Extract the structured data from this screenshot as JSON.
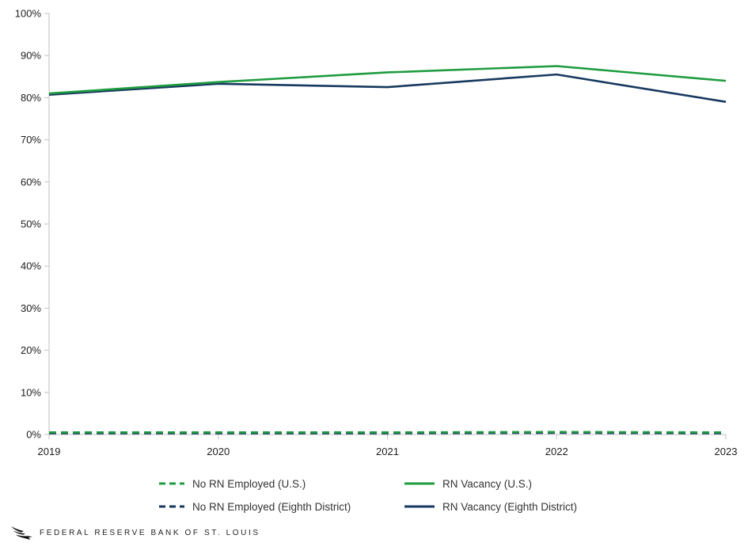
{
  "chart_data": {
    "type": "line",
    "x": [
      "2019",
      "2020",
      "2021",
      "2022",
      "2023"
    ],
    "ylim": [
      0,
      100
    ],
    "y_ticks": [
      0,
      10,
      20,
      30,
      40,
      50,
      60,
      70,
      80,
      90,
      100
    ],
    "y_tick_suffix": "%",
    "grid": false,
    "legend_position": "bottom",
    "colors": {
      "green": "#1e9c3f",
      "navy": "#17395f",
      "axis": "#c2c2c2",
      "tick_text": "#1e1e1e"
    },
    "series": [
      {
        "name": "No RN Employed (Eighth District)",
        "color": "#17395f",
        "dash": true,
        "values": [
          0.3,
          0.3,
          0.3,
          0.4,
          0.3
        ]
      },
      {
        "name": "No RN Employed (U.S.)",
        "color": "#1e9c3f",
        "dash": true,
        "values": [
          0.5,
          0.5,
          0.5,
          0.6,
          0.5
        ]
      },
      {
        "name": "RN Vacancy (Eighth District)",
        "color": "#17395f",
        "dash": false,
        "values": [
          80.7,
          83.3,
          82.5,
          85.5,
          79.0
        ]
      },
      {
        "name": "RN Vacancy (U.S.)",
        "color": "#1e9c3f",
        "dash": false,
        "values": [
          81.0,
          83.7,
          86.0,
          87.5,
          84.0
        ]
      }
    ]
  },
  "footer": {
    "brand": "FEDERAL RESERVE BANK OF ST. LOUIS"
  }
}
